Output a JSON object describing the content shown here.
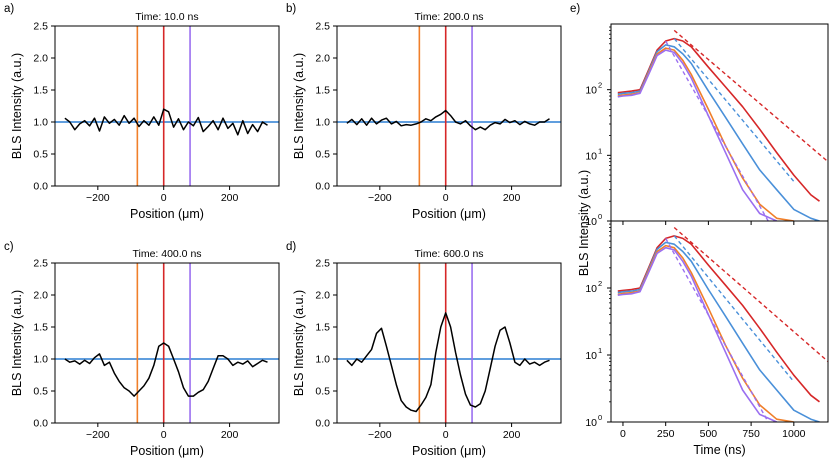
{
  "chart_data": [
    {
      "id": "a",
      "panel_label": "a)",
      "type": "line",
      "title": "Time: 10.0 ns",
      "xlabel": "Position (μm)",
      "ylabel": "BLS Intensity (a.u.)",
      "xlim": [
        -330,
        350
      ],
      "ylim": [
        0,
        2.5
      ],
      "xticks": [
        -200,
        0,
        200
      ],
      "xtick_labels": [
        "−200",
        "0",
        "200"
      ],
      "yticks": [
        0,
        0.5,
        1,
        1.5,
        2,
        2.5
      ],
      "ytick_labels": [
        "0.0",
        "0.5",
        "1.0",
        "1.5",
        "2.0",
        "2.5"
      ],
      "reference_line": {
        "y": 1.0,
        "color": "#4a90d9"
      },
      "vertical_lines": [
        {
          "x": -80,
          "color": "#f07f2a"
        },
        {
          "x": 0,
          "color": "#d62728"
        },
        {
          "x": 80,
          "color": "#9b6ff0"
        }
      ],
      "series": [
        {
          "name": "profile",
          "color": "#000000",
          "x": [
            -300,
            -285,
            -270,
            -255,
            -240,
            -225,
            -210,
            -195,
            -180,
            -165,
            -150,
            -135,
            -120,
            -105,
            -90,
            -75,
            -60,
            -45,
            -30,
            -15,
            0,
            15,
            30,
            45,
            60,
            75,
            90,
            105,
            120,
            135,
            150,
            165,
            180,
            195,
            210,
            225,
            240,
            255,
            270,
            285,
            300,
            315
          ],
          "y": [
            1.06,
            1.0,
            0.88,
            0.97,
            1.02,
            0.94,
            1.06,
            0.86,
            1.08,
            0.98,
            1.04,
            0.95,
            1.1,
            0.98,
            1.06,
            0.93,
            1.02,
            0.95,
            1.08,
            0.95,
            1.2,
            1.16,
            0.92,
            1.05,
            0.88,
            1.0,
            0.94,
            1.07,
            0.85,
            0.93,
            1.02,
            0.88,
            1.06,
            0.9,
            0.98,
            0.8,
            1.02,
            0.82,
            0.96,
            0.85,
            1.0,
            0.95
          ]
        }
      ]
    },
    {
      "id": "b",
      "panel_label": "b)",
      "type": "line",
      "title": "Time: 200.0 ns",
      "xlabel": "Position (μm)",
      "ylabel": "BLS Intensity (a.u.)",
      "xlim": [
        -330,
        350
      ],
      "ylim": [
        0,
        2.5
      ],
      "xticks": [
        -200,
        0,
        200
      ],
      "xtick_labels": [
        "−200",
        "0",
        "200"
      ],
      "yticks": [
        0,
        0.5,
        1,
        1.5,
        2,
        2.5
      ],
      "ytick_labels": [
        "0.0",
        "0.5",
        "1.0",
        "1.5",
        "2.0",
        "2.5"
      ],
      "reference_line": {
        "y": 1.0,
        "color": "#4a90d9"
      },
      "vertical_lines": [
        {
          "x": -80,
          "color": "#f07f2a"
        },
        {
          "x": 0,
          "color": "#d62728"
        },
        {
          "x": 80,
          "color": "#9b6ff0"
        }
      ],
      "series": [
        {
          "name": "profile",
          "color": "#000000",
          "x": [
            -300,
            -285,
            -270,
            -255,
            -240,
            -225,
            -210,
            -195,
            -180,
            -165,
            -150,
            -135,
            -120,
            -105,
            -90,
            -75,
            -60,
            -45,
            -30,
            -15,
            0,
            15,
            30,
            45,
            60,
            75,
            90,
            105,
            120,
            135,
            150,
            165,
            180,
            195,
            210,
            225,
            240,
            255,
            270,
            285,
            300,
            315
          ],
          "y": [
            0.98,
            1.04,
            0.96,
            1.05,
            0.95,
            1.06,
            0.97,
            1.03,
            1.06,
            0.97,
            1.01,
            0.94,
            0.96,
            0.95,
            0.97,
            1.0,
            1.05,
            1.02,
            1.08,
            1.12,
            1.18,
            1.1,
            1.0,
            0.97,
            1.02,
            0.94,
            0.88,
            0.92,
            0.88,
            0.95,
            0.99,
            0.97,
            1.04,
            0.99,
            1.02,
            0.96,
            1.01,
            0.97,
            0.95,
            1.0,
            1.0,
            1.05
          ]
        }
      ]
    },
    {
      "id": "c",
      "panel_label": "c)",
      "type": "line",
      "title": "Time: 400.0 ns",
      "xlabel": "Position (μm)",
      "ylabel": "BLS Intensity (a.u.)",
      "xlim": [
        -330,
        350
      ],
      "ylim": [
        0,
        2.5
      ],
      "xticks": [
        -200,
        0,
        200
      ],
      "xtick_labels": [
        "−200",
        "0",
        "200"
      ],
      "yticks": [
        0,
        0.5,
        1,
        1.5,
        2,
        2.5
      ],
      "ytick_labels": [
        "0.0",
        "0.5",
        "1.0",
        "1.5",
        "2.0",
        "2.5"
      ],
      "reference_line": {
        "y": 1.0,
        "color": "#4a90d9"
      },
      "vertical_lines": [
        {
          "x": -80,
          "color": "#f07f2a"
        },
        {
          "x": 0,
          "color": "#d62728"
        },
        {
          "x": 80,
          "color": "#9b6ff0"
        }
      ],
      "series": [
        {
          "name": "profile",
          "color": "#000000",
          "x": [
            -300,
            -285,
            -270,
            -255,
            -240,
            -225,
            -210,
            -195,
            -180,
            -165,
            -150,
            -135,
            -120,
            -105,
            -90,
            -75,
            -60,
            -45,
            -30,
            -15,
            0,
            15,
            30,
            45,
            60,
            75,
            90,
            105,
            120,
            135,
            150,
            165,
            180,
            195,
            210,
            225,
            240,
            255,
            270,
            285,
            300,
            315
          ],
          "y": [
            1.0,
            0.95,
            0.97,
            0.92,
            0.98,
            0.93,
            1.02,
            1.08,
            0.9,
            0.95,
            0.78,
            0.65,
            0.55,
            0.5,
            0.42,
            0.5,
            0.58,
            0.7,
            0.9,
            1.2,
            1.25,
            1.2,
            1.0,
            0.8,
            0.55,
            0.42,
            0.42,
            0.48,
            0.52,
            0.65,
            0.85,
            1.05,
            1.05,
            1.0,
            0.9,
            0.95,
            0.92,
            0.97,
            0.88,
            0.93,
            0.98,
            0.95
          ]
        }
      ]
    },
    {
      "id": "d",
      "panel_label": "d)",
      "type": "line",
      "title": "Time: 600.0 ns",
      "xlabel": "Position (μm)",
      "ylabel": "BLS Intensity (a.u.)",
      "xlim": [
        -330,
        350
      ],
      "ylim": [
        0,
        2.5
      ],
      "xticks": [
        -200,
        0,
        200
      ],
      "xtick_labels": [
        "−200",
        "0",
        "200"
      ],
      "yticks": [
        0,
        0.5,
        1,
        1.5,
        2,
        2.5
      ],
      "ytick_labels": [
        "0.0",
        "0.5",
        "1.0",
        "1.5",
        "2.0",
        "2.5"
      ],
      "reference_line": {
        "y": 1.0,
        "color": "#4a90d9"
      },
      "vertical_lines": [
        {
          "x": -80,
          "color": "#f07f2a"
        },
        {
          "x": 0,
          "color": "#d62728"
        },
        {
          "x": 80,
          "color": "#9b6ff0"
        }
      ],
      "series": [
        {
          "name": "profile",
          "color": "#000000",
          "x": [
            -300,
            -285,
            -270,
            -255,
            -240,
            -225,
            -210,
            -195,
            -180,
            -165,
            -150,
            -135,
            -120,
            -105,
            -90,
            -75,
            -60,
            -45,
            -30,
            -15,
            0,
            15,
            30,
            45,
            60,
            75,
            90,
            105,
            120,
            135,
            150,
            165,
            180,
            195,
            210,
            225,
            240,
            255,
            270,
            285,
            300,
            315
          ],
          "y": [
            0.98,
            0.9,
            1.0,
            0.95,
            1.05,
            1.15,
            1.4,
            1.48,
            1.2,
            0.9,
            0.6,
            0.35,
            0.25,
            0.2,
            0.18,
            0.28,
            0.4,
            0.6,
            1.1,
            1.5,
            1.72,
            1.5,
            1.1,
            0.75,
            0.45,
            0.28,
            0.25,
            0.3,
            0.5,
            0.85,
            1.2,
            1.45,
            1.5,
            1.25,
            0.95,
            0.9,
            1.0,
            0.92,
            0.95,
            0.9,
            0.95,
            0.98
          ]
        }
      ]
    },
    {
      "id": "e",
      "panel_label": "e)",
      "type": "line",
      "subplots": 2,
      "xlabel": "Time (ns)",
      "ylabel": "BLS Intensity (a.u.)",
      "xlim": [
        -70,
        1200
      ],
      "ylim_log10": [
        0,
        3
      ],
      "yscale": "log",
      "xticks": [
        0,
        250,
        500,
        750,
        1000
      ],
      "xtick_labels": [
        "0",
        "250",
        "500",
        "750",
        "1000"
      ],
      "yticks": [
        1,
        10,
        100
      ],
      "ytick_labels": [
        "10",
        "10",
        "10"
      ],
      "ytick_exponents": [
        "0",
        "1",
        "2"
      ],
      "series": [
        {
          "name": "red",
          "color": "#d62728",
          "x": [
            -30,
            0,
            50,
            100,
            150,
            200,
            250,
            300,
            350,
            400,
            500,
            600,
            700,
            800,
            900,
            1000,
            1100,
            1150
          ],
          "y": [
            90,
            92,
            95,
            100,
            200,
            400,
            550,
            600,
            550,
            450,
            220,
            110,
            55,
            25,
            11,
            5,
            2.5,
            2
          ]
        },
        {
          "name": "blue",
          "color": "#4a90d9",
          "x": [
            -30,
            0,
            50,
            100,
            150,
            200,
            250,
            300,
            350,
            400,
            500,
            600,
            700,
            800,
            900,
            1000,
            1100,
            1150
          ],
          "y": [
            85,
            88,
            90,
            95,
            190,
            380,
            480,
            450,
            350,
            250,
            95,
            38,
            15,
            6,
            3,
            1.5,
            1.1,
            1
          ]
        },
        {
          "name": "orange",
          "color": "#f07f2a",
          "x": [
            -30,
            0,
            50,
            100,
            150,
            200,
            250,
            300,
            350,
            400,
            500,
            600,
            700,
            800,
            900,
            1000
          ],
          "y": [
            80,
            83,
            85,
            90,
            180,
            350,
            430,
            400,
            280,
            170,
            50,
            14,
            4.5,
            1.8,
            1.1,
            1
          ]
        },
        {
          "name": "purple",
          "color": "#9b6ff0",
          "x": [
            -30,
            0,
            50,
            100,
            150,
            200,
            250,
            300,
            350,
            400,
            500,
            600,
            700,
            800,
            900
          ],
          "y": [
            78,
            80,
            82,
            88,
            170,
            330,
            400,
            370,
            250,
            150,
            40,
            11,
            3,
            1.3,
            1
          ]
        }
      ],
      "fit_lines": [
        {
          "name": "red-fit",
          "color": "#d62728",
          "x": [
            300,
            1200
          ],
          "y": [
            800,
            8
          ]
        },
        {
          "name": "blue-fit",
          "color": "#4a90d9",
          "x": [
            300,
            1000
          ],
          "y": [
            600,
            4
          ]
        },
        {
          "name": "purple-fit",
          "color": "#9b6ff0",
          "x": [
            250,
            850
          ],
          "y": [
            550,
            1
          ]
        }
      ]
    }
  ]
}
